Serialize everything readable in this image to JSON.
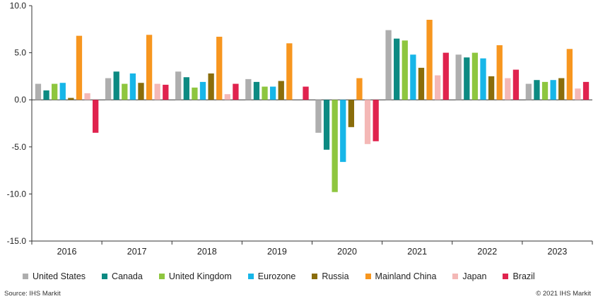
{
  "chart_data": {
    "type": "bar",
    "categories": [
      "2016",
      "2017",
      "2018",
      "2019",
      "2020",
      "2021",
      "2022",
      "2023"
    ],
    "series": [
      {
        "name": "United States",
        "color": "#aeaeae",
        "values": [
          1.7,
          2.3,
          3.0,
          2.2,
          -3.5,
          7.4,
          4.8,
          1.7
        ]
      },
      {
        "name": "Canada",
        "color": "#0c8a82",
        "values": [
          1.0,
          3.0,
          2.4,
          1.9,
          -5.3,
          6.5,
          4.5,
          2.1
        ]
      },
      {
        "name": "United Kingdom",
        "color": "#8ec63f",
        "values": [
          1.7,
          1.7,
          1.3,
          1.4,
          -9.8,
          6.3,
          5.0,
          1.9
        ]
      },
      {
        "name": "Eurozone",
        "color": "#17b6e8",
        "values": [
          1.8,
          2.8,
          1.9,
          1.4,
          -6.6,
          4.8,
          4.4,
          2.1
        ]
      },
      {
        "name": "Russia",
        "color": "#8a6d0b",
        "values": [
          0.2,
          1.8,
          2.8,
          2.0,
          -2.9,
          3.4,
          2.5,
          2.3
        ]
      },
      {
        "name": "Mainland China",
        "color": "#f7961f",
        "values": [
          6.8,
          6.9,
          6.7,
          6.0,
          2.3,
          8.5,
          5.8,
          5.4
        ]
      },
      {
        "name": "Japan",
        "color": "#f4b8b6",
        "values": [
          0.7,
          1.7,
          0.6,
          0.0,
          -4.7,
          2.6,
          2.3,
          1.2
        ]
      },
      {
        "name": "Brazil",
        "color": "#e0234e",
        "values": [
          -3.5,
          1.6,
          1.7,
          1.4,
          -4.4,
          5.0,
          3.2,
          1.9
        ]
      }
    ],
    "ylim": [
      -15.0,
      10.0
    ],
    "yticks": [
      "10.0",
      "5.0",
      "0.0",
      "-5.0",
      "-10.0",
      "-15.0"
    ],
    "title": "",
    "xlabel": "",
    "ylabel": "",
    "grid": false,
    "legend_position": "bottom"
  },
  "footer": {
    "source": "Source: IHS Markit",
    "copyright": "© 2021 IHS Markit"
  }
}
